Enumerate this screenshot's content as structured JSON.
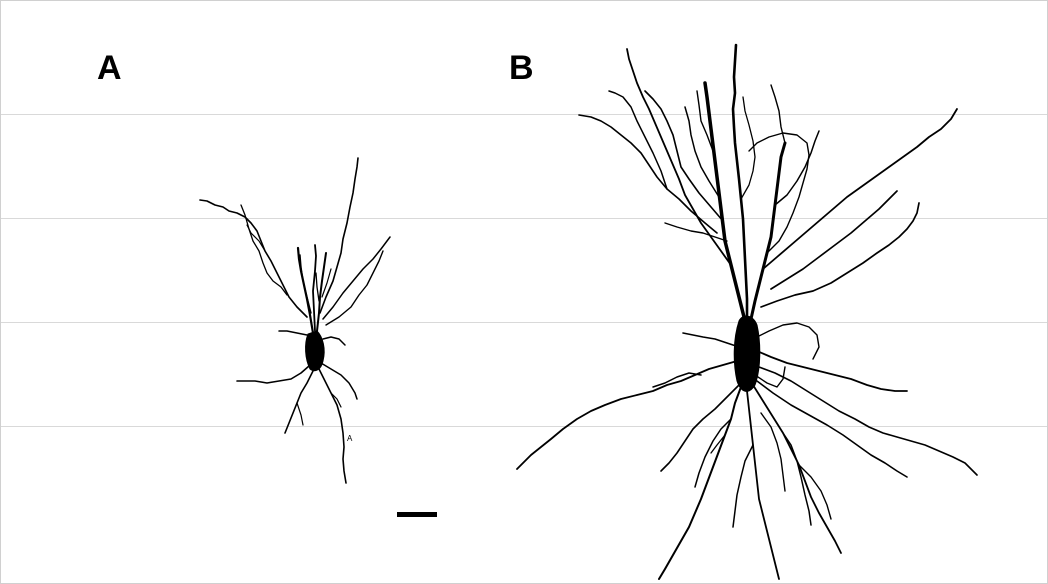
{
  "figure": {
    "panels": [
      {
        "id": "A",
        "label": "A"
      },
      {
        "id": "B",
        "label": "B"
      }
    ],
    "small_mark": "A",
    "colors": {
      "ink": "#000000",
      "background": "#ffffff",
      "gridline": "#d9d9d9"
    }
  }
}
